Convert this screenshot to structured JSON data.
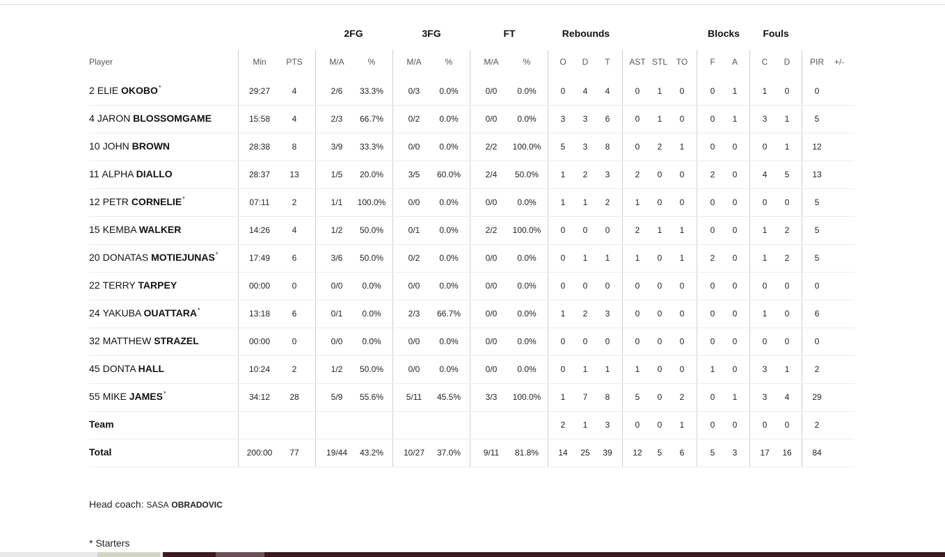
{
  "group_headers": [
    "2FG",
    "3FG",
    "FT",
    "Rebounds",
    "Blocks",
    "Fouls"
  ],
  "column_headers": {
    "player": "Player",
    "min": "Min",
    "pts": "PTS",
    "fg2_ma": "M/A",
    "fg2_pct": "%",
    "fg3_ma": "M/A",
    "fg3_pct": "%",
    "ft_ma": "M/A",
    "ft_pct": "%",
    "reb_o": "O",
    "reb_d": "D",
    "reb_t": "T",
    "ast": "AST",
    "stl": "STL",
    "to": "TO",
    "blk_f": "F",
    "blk_a": "A",
    "foul_c": "C",
    "foul_d": "D",
    "pir": "PIR",
    "plusminus": "+/-"
  },
  "players": [
    {
      "num": "2",
      "first": "ELIE",
      "last": "OKOBO",
      "starter": "*",
      "min": "29:27",
      "pts": "4",
      "fg2_ma": "2/6",
      "fg2_pct": "33.3%",
      "fg3_ma": "0/3",
      "fg3_pct": "0.0%",
      "ft_ma": "0/0",
      "ft_pct": "0.0%",
      "reb_o": "0",
      "reb_d": "4",
      "reb_t": "4",
      "ast": "0",
      "stl": "1",
      "to": "0",
      "blk_f": "0",
      "blk_a": "1",
      "foul_c": "1",
      "foul_d": "0",
      "pir": "0",
      "plusminus": ""
    },
    {
      "num": "4",
      "first": "JARON",
      "last": "BLOSSOMGAME",
      "starter": "",
      "min": "15:58",
      "pts": "4",
      "fg2_ma": "2/3",
      "fg2_pct": "66.7%",
      "fg3_ma": "0/2",
      "fg3_pct": "0.0%",
      "ft_ma": "0/0",
      "ft_pct": "0.0%",
      "reb_o": "3",
      "reb_d": "3",
      "reb_t": "6",
      "ast": "0",
      "stl": "1",
      "to": "0",
      "blk_f": "0",
      "blk_a": "1",
      "foul_c": "3",
      "foul_d": "1",
      "pir": "5",
      "plusminus": ""
    },
    {
      "num": "10",
      "first": "JOHN",
      "last": "BROWN",
      "starter": "",
      "min": "28:38",
      "pts": "8",
      "fg2_ma": "3/9",
      "fg2_pct": "33.3%",
      "fg3_ma": "0/0",
      "fg3_pct": "0.0%",
      "ft_ma": "2/2",
      "ft_pct": "100.0%",
      "reb_o": "5",
      "reb_d": "3",
      "reb_t": "8",
      "ast": "0",
      "stl": "2",
      "to": "1",
      "blk_f": "0",
      "blk_a": "0",
      "foul_c": "0",
      "foul_d": "1",
      "pir": "12",
      "plusminus": ""
    },
    {
      "num": "11",
      "first": "ALPHA",
      "last": "DIALLO",
      "starter": "",
      "min": "28:37",
      "pts": "13",
      "fg2_ma": "1/5",
      "fg2_pct": "20.0%",
      "fg3_ma": "3/5",
      "fg3_pct": "60.0%",
      "ft_ma": "2/4",
      "ft_pct": "50.0%",
      "reb_o": "1",
      "reb_d": "2",
      "reb_t": "3",
      "ast": "2",
      "stl": "0",
      "to": "0",
      "blk_f": "2",
      "blk_a": "0",
      "foul_c": "4",
      "foul_d": "5",
      "pir": "13",
      "plusminus": ""
    },
    {
      "num": "12",
      "first": "PETR",
      "last": "CORNELIE",
      "starter": "*",
      "min": "07:11",
      "pts": "2",
      "fg2_ma": "1/1",
      "fg2_pct": "100.0%",
      "fg3_ma": "0/0",
      "fg3_pct": "0.0%",
      "ft_ma": "0/0",
      "ft_pct": "0.0%",
      "reb_o": "1",
      "reb_d": "1",
      "reb_t": "2",
      "ast": "1",
      "stl": "0",
      "to": "0",
      "blk_f": "0",
      "blk_a": "0",
      "foul_c": "0",
      "foul_d": "0",
      "pir": "5",
      "plusminus": ""
    },
    {
      "num": "15",
      "first": "KEMBA",
      "last": "WALKER",
      "starter": "",
      "min": "14:26",
      "pts": "4",
      "fg2_ma": "1/2",
      "fg2_pct": "50.0%",
      "fg3_ma": "0/1",
      "fg3_pct": "0.0%",
      "ft_ma": "2/2",
      "ft_pct": "100.0%",
      "reb_o": "0",
      "reb_d": "0",
      "reb_t": "0",
      "ast": "2",
      "stl": "1",
      "to": "1",
      "blk_f": "0",
      "blk_a": "0",
      "foul_c": "1",
      "foul_d": "2",
      "pir": "5",
      "plusminus": ""
    },
    {
      "num": "20",
      "first": "DONATAS",
      "last": "MOTIEJUNAS",
      "starter": "*",
      "min": "17:49",
      "pts": "6",
      "fg2_ma": "3/6",
      "fg2_pct": "50.0%",
      "fg3_ma": "0/2",
      "fg3_pct": "0.0%",
      "ft_ma": "0/0",
      "ft_pct": "0.0%",
      "reb_o": "0",
      "reb_d": "1",
      "reb_t": "1",
      "ast": "1",
      "stl": "0",
      "to": "1",
      "blk_f": "2",
      "blk_a": "0",
      "foul_c": "1",
      "foul_d": "2",
      "pir": "5",
      "plusminus": ""
    },
    {
      "num": "22",
      "first": "TERRY",
      "last": "TARPEY",
      "starter": "",
      "min": "00:00",
      "pts": "0",
      "fg2_ma": "0/0",
      "fg2_pct": "0.0%",
      "fg3_ma": "0/0",
      "fg3_pct": "0.0%",
      "ft_ma": "0/0",
      "ft_pct": "0.0%",
      "reb_o": "0",
      "reb_d": "0",
      "reb_t": "0",
      "ast": "0",
      "stl": "0",
      "to": "0",
      "blk_f": "0",
      "blk_a": "0",
      "foul_c": "0",
      "foul_d": "0",
      "pir": "0",
      "plusminus": ""
    },
    {
      "num": "24",
      "first": "YAKUBA",
      "last": "OUATTARA",
      "starter": "*",
      "min": "13:18",
      "pts": "6",
      "fg2_ma": "0/1",
      "fg2_pct": "0.0%",
      "fg3_ma": "2/3",
      "fg3_pct": "66.7%",
      "ft_ma": "0/0",
      "ft_pct": "0.0%",
      "reb_o": "1",
      "reb_d": "2",
      "reb_t": "3",
      "ast": "0",
      "stl": "0",
      "to": "0",
      "blk_f": "0",
      "blk_a": "0",
      "foul_c": "1",
      "foul_d": "0",
      "pir": "6",
      "plusminus": ""
    },
    {
      "num": "32",
      "first": "MATTHEW",
      "last": "STRAZEL",
      "starter": "",
      "min": "00:00",
      "pts": "0",
      "fg2_ma": "0/0",
      "fg2_pct": "0.0%",
      "fg3_ma": "0/0",
      "fg3_pct": "0.0%",
      "ft_ma": "0/0",
      "ft_pct": "0.0%",
      "reb_o": "0",
      "reb_d": "0",
      "reb_t": "0",
      "ast": "0",
      "stl": "0",
      "to": "0",
      "blk_f": "0",
      "blk_a": "0",
      "foul_c": "0",
      "foul_d": "0",
      "pir": "0",
      "plusminus": ""
    },
    {
      "num": "45",
      "first": "DONTA",
      "last": "HALL",
      "starter": "",
      "min": "10:24",
      "pts": "2",
      "fg2_ma": "1/2",
      "fg2_pct": "50.0%",
      "fg3_ma": "0/0",
      "fg3_pct": "0.0%",
      "ft_ma": "0/0",
      "ft_pct": "0.0%",
      "reb_o": "0",
      "reb_d": "1",
      "reb_t": "1",
      "ast": "1",
      "stl": "0",
      "to": "0",
      "blk_f": "1",
      "blk_a": "0",
      "foul_c": "3",
      "foul_d": "1",
      "pir": "2",
      "plusminus": ""
    },
    {
      "num": "55",
      "first": "MIKE",
      "last": "JAMES",
      "starter": "*",
      "min": "34:12",
      "pts": "28",
      "fg2_ma": "5/9",
      "fg2_pct": "55.6%",
      "fg3_ma": "5/11",
      "fg3_pct": "45.5%",
      "ft_ma": "3/3",
      "ft_pct": "100.0%",
      "reb_o": "1",
      "reb_d": "7",
      "reb_t": "8",
      "ast": "5",
      "stl": "0",
      "to": "2",
      "blk_f": "0",
      "blk_a": "1",
      "foul_c": "3",
      "foul_d": "4",
      "pir": "29",
      "plusminus": ""
    }
  ],
  "team_row": {
    "label": "Team",
    "min": "",
    "pts": "",
    "fg2_ma": "",
    "fg2_pct": "",
    "fg3_ma": "",
    "fg3_pct": "",
    "ft_ma": "",
    "ft_pct": "",
    "reb_o": "2",
    "reb_d": "1",
    "reb_t": "3",
    "ast": "0",
    "stl": "0",
    "to": "1",
    "blk_f": "0",
    "blk_a": "0",
    "foul_c": "0",
    "foul_d": "0",
    "pir": "2",
    "plusminus": ""
  },
  "total_row": {
    "label": "Total",
    "min": "200:00",
    "pts": "77",
    "fg2_ma": "19/44",
    "fg2_pct": "43.2%",
    "fg3_ma": "10/27",
    "fg3_pct": "37.0%",
    "ft_ma": "9/11",
    "ft_pct": "81.8%",
    "reb_o": "14",
    "reb_d": "25",
    "reb_t": "39",
    "ast": "12",
    "stl": "5",
    "to": "6",
    "blk_f": "5",
    "blk_a": "3",
    "foul_c": "17",
    "foul_d": "16",
    "pir": "84",
    "plusminus": ""
  },
  "coach": {
    "label": "Head coach:",
    "first": "SASA",
    "last": "OBRADOVIC"
  },
  "legend": "* Starters"
}
